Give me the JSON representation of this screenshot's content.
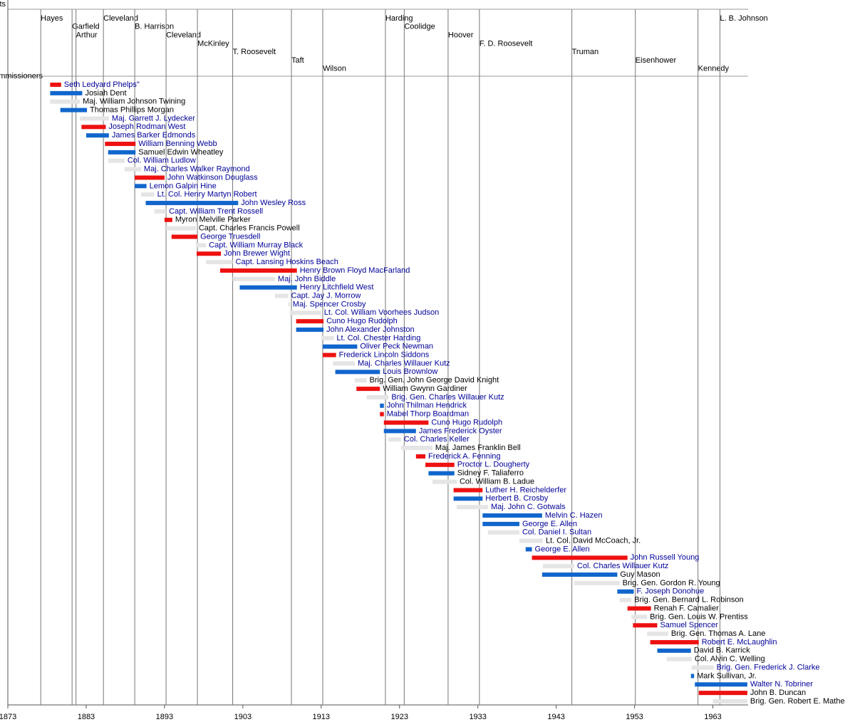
{
  "chart_data": {
    "type": "timeline",
    "top_label": "ts",
    "left_label": "ommissioners",
    "xlim": [
      1873,
      1967.5
    ],
    "xticks": [
      1873,
      1883,
      1893,
      1903,
      1913,
      1923,
      1933,
      1943,
      1953,
      1963
    ],
    "presidents": [
      {
        "name": "Hayes",
        "year": 1877.2
      },
      {
        "name": "Garfield",
        "year": 1881.2
      },
      {
        "name": "Arthur",
        "year": 1881.7
      },
      {
        "name": "Cleveland",
        "year": 1885.2
      },
      {
        "name": "B. Harrison",
        "year": 1889.2
      },
      {
        "name": "Cleveland",
        "year": 1893.2
      },
      {
        "name": "McKinley",
        "year": 1897.2
      },
      {
        "name": "T. Roosevelt",
        "year": 1901.7
      },
      {
        "name": "Taft",
        "year": 1909.2
      },
      {
        "name": "Wilson",
        "year": 1913.2
      },
      {
        "name": "Harding",
        "year": 1921.2
      },
      {
        "name": "Coolidge",
        "year": 1923.6
      },
      {
        "name": "Hoover",
        "year": 1929.2
      },
      {
        "name": "F. D. Roosevelt",
        "year": 1933.2
      },
      {
        "name": "Truman",
        "year": 1945.0
      },
      {
        "name": "Eisenhower",
        "year": 1953.1
      },
      {
        "name": "Kennedy",
        "year": 1961.1
      },
      {
        "name": "L. B. Johnson",
        "year": 1963.9
      }
    ],
    "commissioners": [
      {
        "name": "Seth Ledyard Phelps\"",
        "start": 1878.4,
        "end": 1879.8,
        "color": "#ee1111",
        "text_color": "#000099"
      },
      {
        "name": "Josiah Dent",
        "start": 1878.4,
        "end": 1882.5,
        "color": "#1166cc",
        "text_color": "#000000"
      },
      {
        "name": "Maj. William Johnson Twining",
        "start": 1878.4,
        "end": 1882.2,
        "color": "#e5e5e5",
        "text_color": "#000000"
      },
      {
        "name": "Thomas Phillips Morgan",
        "start": 1879.7,
        "end": 1883.1,
        "color": "#1166cc",
        "text_color": "#000000"
      },
      {
        "name": "Maj. Garrett J. Lydecker",
        "start": 1882.2,
        "end": 1885.9,
        "color": "#e5e5e5",
        "text_color": "#000099"
      },
      {
        "name": "Joseph Rodman West",
        "start": 1882.4,
        "end": 1885.5,
        "color": "#ee1111",
        "text_color": "#000099"
      },
      {
        "name": "James Barker Edmonds",
        "start": 1883.0,
        "end": 1885.9,
        "color": "#1166cc",
        "text_color": "#000099"
      },
      {
        "name": "William Benning Webb",
        "start": 1885.4,
        "end": 1889.3,
        "color": "#ee1111",
        "text_color": "#000099"
      },
      {
        "name": "Samuel Edwin Wheatley",
        "start": 1885.8,
        "end": 1889.3,
        "color": "#1166cc",
        "text_color": "#000000"
      },
      {
        "name": "Col. William Ludlow",
        "start": 1885.8,
        "end": 1887.9,
        "color": "#e5e5e5",
        "text_color": "#000099"
      },
      {
        "name": "Maj. Charles Walker Raymond",
        "start": 1887.9,
        "end": 1890.0,
        "color": "#e5e5e5",
        "text_color": "#000099"
      },
      {
        "name": "John Watkinson Douglass",
        "start": 1889.2,
        "end": 1893.0,
        "color": "#ee1111",
        "text_color": "#000099"
      },
      {
        "name": "Lemon Galpin Hine",
        "start": 1889.2,
        "end": 1890.7,
        "color": "#1166cc",
        "text_color": "#000099"
      },
      {
        "name": "Lt. Col. Henry Martyn Robert",
        "start": 1890.0,
        "end": 1891.7,
        "color": "#e5e5e5",
        "text_color": "#000099"
      },
      {
        "name": "John Wesley Ross",
        "start": 1890.6,
        "end": 1902.4,
        "color": "#1166cc",
        "text_color": "#000099"
      },
      {
        "name": "Capt. William Trent Rossell",
        "start": 1891.7,
        "end": 1893.2,
        "color": "#e5e5e5",
        "text_color": "#000099"
      },
      {
        "name": "Myron Melville Parker",
        "start": 1893.0,
        "end": 1894.0,
        "color": "#ee1111",
        "text_color": "#000000"
      },
      {
        "name": "Capt. Charles Francis Powell",
        "start": 1893.2,
        "end": 1897.0,
        "color": "#e5e5e5",
        "text_color": "#000000"
      },
      {
        "name": "George Truesdell",
        "start": 1893.9,
        "end": 1897.2,
        "color": "#ee1111",
        "text_color": "#000099"
      },
      {
        "name": "Capt. William Murray Black",
        "start": 1897.0,
        "end": 1898.3,
        "color": "#e5e5e5",
        "text_color": "#000099"
      },
      {
        "name": "John Brewer Wight",
        "start": 1897.1,
        "end": 1900.2,
        "color": "#ee1111",
        "text_color": "#000099"
      },
      {
        "name": "Capt. Lansing Hoskins Beach",
        "start": 1898.3,
        "end": 1901.7,
        "color": "#e5e5e5",
        "text_color": "#000099"
      },
      {
        "name": "Henry Brown Floyd MacFarland",
        "start": 1900.1,
        "end": 1909.9,
        "color": "#ee1111",
        "text_color": "#000099"
      },
      {
        "name": "Maj. John Biddle",
        "start": 1901.7,
        "end": 1907.1,
        "color": "#e5e5e5",
        "text_color": "#000099"
      },
      {
        "name": "Henry Litchfield West",
        "start": 1902.6,
        "end": 1909.9,
        "color": "#1166cc",
        "text_color": "#000099"
      },
      {
        "name": "Capt. Jay J. Morrow",
        "start": 1907.1,
        "end": 1908.8,
        "color": "#e5e5e5",
        "text_color": "#000099"
      },
      {
        "name": "Maj. Spencer Crosby",
        "start": 1908.8,
        "end": 1909.0,
        "color": "#e5e5e5",
        "text_color": "#000099"
      },
      {
        "name": "Lt. Col. William Voorhees Judson",
        "start": 1909.0,
        "end": 1913.0,
        "color": "#e5e5e5",
        "text_color": "#000099"
      },
      {
        "name": "Cuno Hugo Rudolph",
        "start": 1909.8,
        "end": 1913.3,
        "color": "#ee1111",
        "text_color": "#000099"
      },
      {
        "name": "John Alexander Johnston",
        "start": 1909.8,
        "end": 1913.3,
        "color": "#1166cc",
        "text_color": "#000099"
      },
      {
        "name": "Lt. Col. Chester Harding",
        "start": 1913.0,
        "end": 1914.6,
        "color": "#e5e5e5",
        "text_color": "#000099"
      },
      {
        "name": "Oliver Peck Newman",
        "start": 1913.2,
        "end": 1917.6,
        "color": "#1166cc",
        "text_color": "#000099"
      },
      {
        "name": "Frederick Lincoln Siddons",
        "start": 1913.2,
        "end": 1914.9,
        "color": "#ee1111",
        "text_color": "#000099"
      },
      {
        "name": "Maj. Charles Willauer Kutz",
        "start": 1914.5,
        "end": 1917.3,
        "color": "#e5e5e5",
        "text_color": "#000099"
      },
      {
        "name": "Louis Brownlow",
        "start": 1914.8,
        "end": 1920.5,
        "color": "#1166cc",
        "text_color": "#000099"
      },
      {
        "name": "Brig. Gen. John George David Knight",
        "start": 1917.3,
        "end": 1918.8,
        "color": "#e5e5e5",
        "text_color": "#000000"
      },
      {
        "name": "William Gwynn Gardiner",
        "start": 1917.5,
        "end": 1920.5,
        "color": "#ee1111",
        "text_color": "#000000"
      },
      {
        "name": "Brig. Gen. Charles Willauer Kutz",
        "start": 1918.8,
        "end": 1921.6,
        "color": "#e5e5e5",
        "text_color": "#000099"
      },
      {
        "name": "John Thilman Hendrick",
        "start": 1920.5,
        "end": 1921.0,
        "color": "#1166cc",
        "text_color": "#000099"
      },
      {
        "name": "Mabel Thorp Boardman",
        "start": 1920.5,
        "end": 1921.0,
        "color": "#ee1111",
        "text_color": "#000099"
      },
      {
        "name": "Cuno Hugo Rudolph",
        "start": 1921.0,
        "end": 1926.7,
        "color": "#ee1111",
        "text_color": "#000099"
      },
      {
        "name": "James Frederick Oyster",
        "start": 1921.0,
        "end": 1925.1,
        "color": "#1166cc",
        "text_color": "#000099"
      },
      {
        "name": "Col. Charles Keller",
        "start": 1921.6,
        "end": 1923.2,
        "color": "#e5e5e5",
        "text_color": "#000099"
      },
      {
        "name": "Maj. James Franklin Bell",
        "start": 1923.2,
        "end": 1927.2,
        "color": "#e5e5e5",
        "text_color": "#000000"
      },
      {
        "name": "Frederick A. Fenning",
        "start": 1925.1,
        "end": 1926.3,
        "color": "#ee1111",
        "text_color": "#000099"
      },
      {
        "name": "Proctor L. Dougherty",
        "start": 1926.3,
        "end": 1930.0,
        "color": "#ee1111",
        "text_color": "#000099"
      },
      {
        "name": "Sidney F. Taliaferro",
        "start": 1926.7,
        "end": 1930.0,
        "color": "#1166cc",
        "text_color": "#000000"
      },
      {
        "name": "Col. William B. Ladue",
        "start": 1927.2,
        "end": 1930.3,
        "color": "#e5e5e5",
        "text_color": "#000000"
      },
      {
        "name": "Luther H. Reichelderfer",
        "start": 1929.9,
        "end": 1933.6,
        "color": "#ee1111",
        "text_color": "#000099"
      },
      {
        "name": "Herbert B. Crosby",
        "start": 1929.9,
        "end": 1933.6,
        "color": "#1166cc",
        "text_color": "#000099"
      },
      {
        "name": "Maj. John C. Gotwals",
        "start": 1930.3,
        "end": 1934.3,
        "color": "#e5e5e5",
        "text_color": "#000099"
      },
      {
        "name": "Melvin C. Hazen",
        "start": 1933.6,
        "end": 1941.2,
        "color": "#1166cc",
        "text_color": "#000099"
      },
      {
        "name": "George E. Allen",
        "start": 1933.6,
        "end": 1938.3,
        "color": "#1166cc",
        "text_color": "#000099"
      },
      {
        "name": "Col. Daniel I. Sultan",
        "start": 1934.3,
        "end": 1938.3,
        "color": "#e5e5e5",
        "text_color": "#000099"
      },
      {
        "name": "Lt. Col. David McCoach, Jr.",
        "start": 1938.3,
        "end": 1941.3,
        "color": "#e5e5e5",
        "text_color": "#000000"
      },
      {
        "name": "George E. Allen",
        "start": 1939.1,
        "end": 1939.9,
        "color": "#1166cc",
        "text_color": "#000099"
      },
      {
        "name": "John Russell Young",
        "start": 1939.9,
        "end": 1952.1,
        "color": "#ee1111",
        "text_color": "#000099"
      },
      {
        "name": "Col. Charles Willauer Kutz",
        "start": 1941.3,
        "end": 1945.3,
        "color": "#e5e5e5",
        "text_color": "#000099"
      },
      {
        "name": "Guy Mason",
        "start": 1941.2,
        "end": 1950.8,
        "color": "#1166cc",
        "text_color": "#000000"
      },
      {
        "name": "Brig. Gen. Gordon R. Young",
        "start": 1945.3,
        "end": 1951.1,
        "color": "#e5e5e5",
        "text_color": "#000000"
      },
      {
        "name": "F. Joseph Donohue",
        "start": 1950.8,
        "end": 1952.9,
        "color": "#1166cc",
        "text_color": "#000099"
      },
      {
        "name": "Brig. Gen. Bernard L. Robinson",
        "start": 1951.1,
        "end": 1952.6,
        "color": "#e5e5e5",
        "text_color": "#000000"
      },
      {
        "name": "Renah F. Camalier",
        "start": 1952.1,
        "end": 1955.1,
        "color": "#ee1111",
        "text_color": "#000000"
      },
      {
        "name": "Brig. Gen. Louis W. Prentiss",
        "start": 1952.6,
        "end": 1954.6,
        "color": "#e5e5e5",
        "text_color": "#000000"
      },
      {
        "name": "Samuel Spencer",
        "start": 1952.8,
        "end": 1955.9,
        "color": "#ee1111",
        "text_color": "#000099"
      },
      {
        "name": "Brig. Gen. Thomas A. Lane",
        "start": 1954.6,
        "end": 1957.3,
        "color": "#e5e5e5",
        "text_color": "#000000"
      },
      {
        "name": "Robert E. McLaughlin",
        "start": 1955.0,
        "end": 1961.2,
        "color": "#ee1111",
        "text_color": "#000099"
      },
      {
        "name": "David B. Karrick",
        "start": 1955.9,
        "end": 1960.2,
        "color": "#1166cc",
        "text_color": "#000000"
      },
      {
        "name": "Col. Alvin C. Welling",
        "start": 1957.1,
        "end": 1960.3,
        "color": "#e5e5e5",
        "text_color": "#000000"
      },
      {
        "name": "Brig. Gen. Frederick J. Clarke",
        "start": 1960.3,
        "end": 1963.1,
        "color": "#e5e5e5",
        "text_color": "#000099"
      },
      {
        "name": "Mark Sullivan, Jr.",
        "start": 1960.2,
        "end": 1960.6,
        "color": "#1166cc",
        "text_color": "#000000"
      },
      {
        "name": "Walter N. Tobriner",
        "start": 1960.7,
        "end": 1967.4,
        "color": "#1166cc",
        "text_color": "#000099"
      },
      {
        "name": "John B. Duncan",
        "start": 1961.2,
        "end": 1967.4,
        "color": "#ee1111",
        "text_color": "#000000"
      },
      {
        "name": "Brig. Gen. Robert E. Mathe",
        "start": 1963.0,
        "end": 1967.4,
        "color": "#e5e5e5",
        "text_color": "#000000"
      }
    ]
  }
}
